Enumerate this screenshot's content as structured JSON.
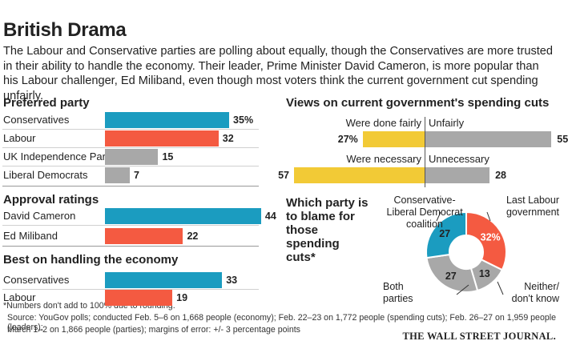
{
  "title": "British Drama",
  "subtitle": "The Labour and Conservative parties are polling about equally, though the Conservatives are more trusted in their ability to handle the economy. Their leader, Prime Minister David Cameron, is more popular than his Labour challenger, Ed Miliband, even though most voters think the current government cut spending unfairly.",
  "colors": {
    "blue": "#1b9cc0",
    "red": "#f45a41",
    "gray": "#a8a8a8",
    "yellow": "#f2ca36"
  },
  "chart_data": [
    {
      "type": "bar",
      "title": "Preferred party",
      "categories": [
        "Conservatives",
        "Labour",
        "UK Independence Party",
        "Liberal Democrats"
      ],
      "values": [
        35,
        32,
        15,
        7
      ],
      "value_labels": [
        "35%",
        "32",
        "15",
        "7"
      ]
    },
    {
      "type": "bar",
      "title": "Approval ratings",
      "categories": [
        "David Cameron",
        "Ed Miliband"
      ],
      "values": [
        44,
        22
      ],
      "value_labels": [
        "44",
        "22"
      ]
    },
    {
      "type": "bar",
      "title": "Best on handling the economy",
      "categories": [
        "Conservatives",
        "Labour"
      ],
      "values": [
        33,
        19
      ],
      "value_labels": [
        "33",
        "19"
      ]
    },
    {
      "type": "bar",
      "title": "Views on current government's spending cuts",
      "rows": [
        {
          "left_label": "Were done fairly",
          "left_value": 27,
          "left_value_label": "27%",
          "right_label": "Unfairly",
          "right_value": 55,
          "right_value_label": "55"
        },
        {
          "left_label": "Were necessary",
          "left_value": 57,
          "left_value_label": "57",
          "right_label": "Unnecessary",
          "right_value": 28,
          "right_value_label": "28"
        }
      ]
    },
    {
      "type": "pie",
      "title": "Which party is to blame for those spending cuts*",
      "slices": [
        {
          "name": "Last Labour government",
          "value": 32,
          "label": "32%"
        },
        {
          "name": "Neither/ don't know",
          "value": 13,
          "label": "13"
        },
        {
          "name": "Both parties",
          "value": 27,
          "label": "27"
        },
        {
          "name": "Conservative-Liberal Democrat coalition",
          "value": 27,
          "label": "27"
        }
      ],
      "slice_labels": {
        "coalition": [
          "Conservative-",
          "Liberal Democrat",
          "coalition"
        ],
        "labour": [
          "Last Labour",
          "government"
        ],
        "both": [
          "Both",
          "parties"
        ],
        "neither": [
          "Neither/",
          "don't know"
        ]
      }
    }
  ],
  "footnotes": {
    "note": "*Numbers don't add to 100% due to rounding.",
    "source1": "Source: YouGov polls; conducted Feb. 5–6 on 1,668 people (economy); Feb. 22–23 on 1,772 people (spending cuts); Feb. 26–27 on 1,959 people (leaders);",
    "source2": "March 1–2 on 1,866 people (parties); margins of error: +/- 3 percentage points",
    "brand": "THE WALL STREET JOURNAL."
  }
}
